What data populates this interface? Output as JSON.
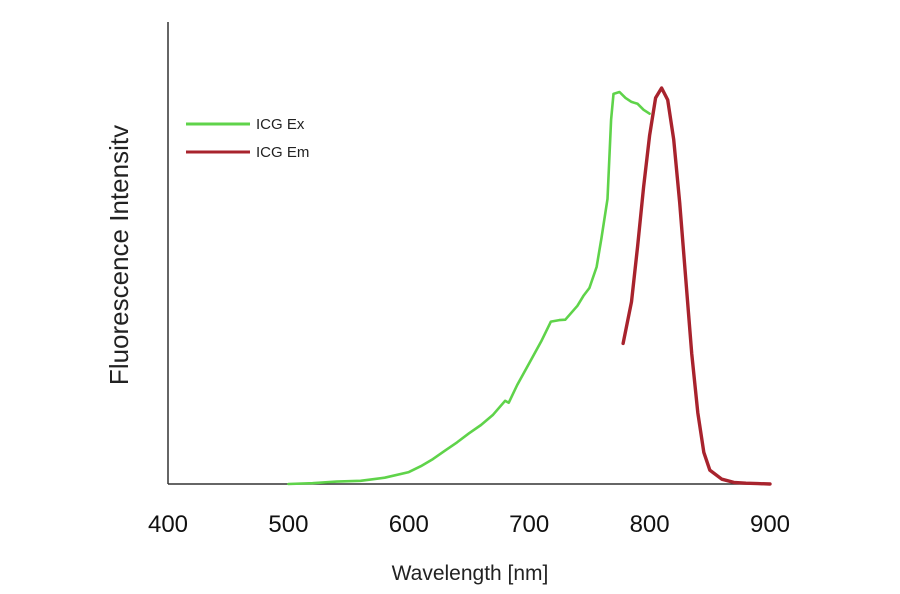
{
  "chart_data": {
    "type": "line",
    "xlabel": "Wavelength [nm]",
    "ylabel": "Fluorescence Intensitv",
    "xlim": [
      400,
      900
    ],
    "ylim": [
      0,
      1.0
    ],
    "x_ticks": [
      "400",
      "500",
      "600",
      "700",
      "800",
      "900"
    ],
    "grid": false,
    "legend_position": "top-left",
    "series": [
      {
        "name": "ICG Ex",
        "color": "#5fd34a",
        "points": [
          [
            500,
            0.0
          ],
          [
            520,
            0.002
          ],
          [
            540,
            0.006
          ],
          [
            560,
            0.008
          ],
          [
            580,
            0.016
          ],
          [
            600,
            0.03
          ],
          [
            610,
            0.045
          ],
          [
            620,
            0.063
          ],
          [
            630,
            0.084
          ],
          [
            640,
            0.105
          ],
          [
            650,
            0.128
          ],
          [
            660,
            0.149
          ],
          [
            670,
            0.175
          ],
          [
            680,
            0.21
          ],
          [
            683,
            0.205
          ],
          [
            690,
            0.25
          ],
          [
            700,
            0.305
          ],
          [
            710,
            0.36
          ],
          [
            718,
            0.41
          ],
          [
            725,
            0.414
          ],
          [
            730,
            0.415
          ],
          [
            740,
            0.45
          ],
          [
            745,
            0.475
          ],
          [
            750,
            0.495
          ],
          [
            756,
            0.548
          ],
          [
            760,
            0.62
          ],
          [
            765,
            0.72
          ],
          [
            768,
            0.92
          ],
          [
            770,
            0.985
          ],
          [
            775,
            0.99
          ],
          [
            780,
            0.975
          ],
          [
            785,
            0.965
          ],
          [
            790,
            0.96
          ],
          [
            795,
            0.945
          ],
          [
            800,
            0.935
          ]
        ]
      },
      {
        "name": "ICG Em",
        "color": "#a8232d",
        "points": [
          [
            778,
            0.355
          ],
          [
            785,
            0.46
          ],
          [
            790,
            0.6
          ],
          [
            795,
            0.75
          ],
          [
            800,
            0.88
          ],
          [
            805,
            0.975
          ],
          [
            810,
            1.0
          ],
          [
            815,
            0.97
          ],
          [
            820,
            0.87
          ],
          [
            825,
            0.71
          ],
          [
            830,
            0.52
          ],
          [
            835,
            0.33
          ],
          [
            840,
            0.18
          ],
          [
            845,
            0.08
          ],
          [
            850,
            0.035
          ],
          [
            860,
            0.012
          ],
          [
            870,
            0.004
          ],
          [
            880,
            0.002
          ],
          [
            890,
            0.001
          ],
          [
            900,
            0.0
          ]
        ]
      }
    ]
  }
}
